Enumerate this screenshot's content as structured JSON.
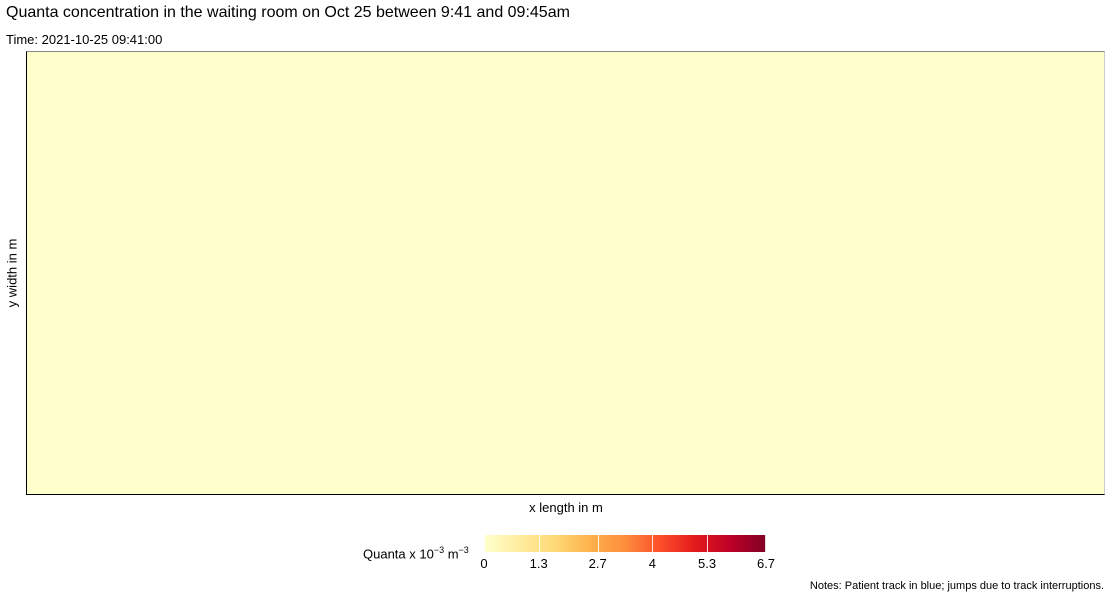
{
  "chart_data": {
    "type": "heatmap",
    "title": "Quanta concentration in the waiting room on Oct 25 between 9:41 and 09:45am",
    "subtitle": "Time: 2021-10-25 09:41:00",
    "xlabel": "x length in m",
    "ylabel": "y width in m",
    "values": [
      [
        0
      ]
    ],
    "legend": {
      "title_main": "Quanta x 10",
      "title_exp1": "−3",
      "title_unit": " m",
      "title_exp2": "−3",
      "range": [
        0,
        6.7
      ],
      "ticks": [
        0,
        1.3,
        2.7,
        4,
        5.3,
        6.7
      ],
      "tick_labels": [
        "0",
        "1.3",
        "2.7",
        "4",
        "5.3",
        "6.7"
      ],
      "colors": [
        "#ffffcc",
        "#ffeda0",
        "#fed976",
        "#feb24c",
        "#fd8d3c",
        "#fc4e2a",
        "#e31a1c",
        "#bd0026",
        "#800026"
      ],
      "placement": "bottom"
    },
    "notes": "Notes: Patient track in blue; jumps due to track interruptions."
  }
}
